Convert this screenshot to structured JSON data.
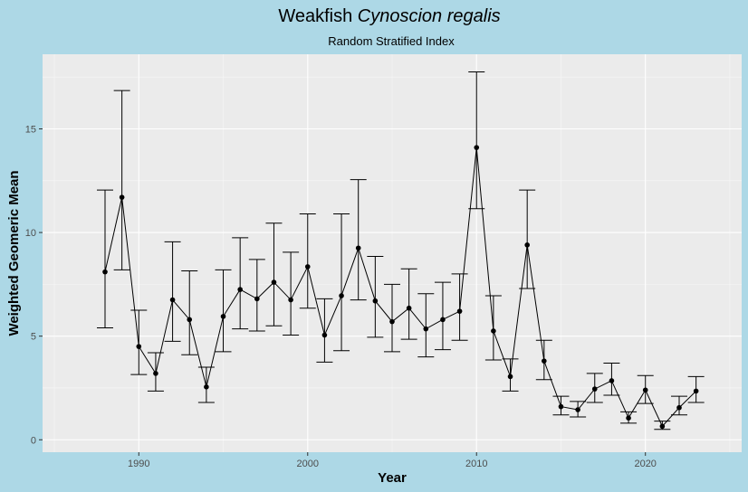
{
  "chart_data": {
    "type": "line",
    "title_main": "Weakfish",
    "title_species": "Cynoscion regalis",
    "subtitle": "Random Stratified Index",
    "xlabel": "Year",
    "ylabel": "Weighted Geomeric Mean",
    "xlim": [
      1984.3,
      2025.7
    ],
    "ylim": [
      -0.6,
      18.6
    ],
    "x_ticks": [
      1990,
      2000,
      2010,
      2020
    ],
    "y_ticks": [
      0,
      5,
      10,
      15
    ],
    "grid": true,
    "legend": "none",
    "series": [
      {
        "name": "Weighted Geometric Mean",
        "x": [
          1988,
          1989,
          1990,
          1991,
          1992,
          1993,
          1994,
          1995,
          1996,
          1997,
          1998,
          1999,
          2000,
          2001,
          2002,
          2003,
          2004,
          2005,
          2006,
          2007,
          2008,
          2009,
          2010,
          2011,
          2012,
          2013,
          2014,
          2015,
          2016,
          2017,
          2018,
          2019,
          2020,
          2021,
          2022,
          2023
        ],
        "values": [
          8.1,
          11.7,
          4.5,
          3.2,
          6.75,
          5.8,
          2.55,
          5.95,
          7.25,
          6.8,
          7.6,
          6.75,
          8.35,
          5.05,
          6.95,
          9.25,
          6.7,
          5.7,
          6.35,
          5.35,
          5.8,
          6.2,
          14.1,
          5.25,
          3.05,
          9.4,
          3.8,
          1.6,
          1.45,
          2.45,
          2.85,
          1.05,
          2.4,
          0.65,
          1.55,
          2.35
        ],
        "lower": [
          5.4,
          8.2,
          3.15,
          2.35,
          4.75,
          4.1,
          1.8,
          4.25,
          5.35,
          5.25,
          5.5,
          5.05,
          6.35,
          3.75,
          4.3,
          6.75,
          4.95,
          4.25,
          4.85,
          4.0,
          4.35,
          4.8,
          11.15,
          3.85,
          2.35,
          7.3,
          2.9,
          1.2,
          1.1,
          1.8,
          2.15,
          0.8,
          1.75,
          0.5,
          1.2,
          1.8
        ],
        "upper": [
          12.05,
          16.85,
          6.25,
          4.2,
          9.55,
          8.15,
          3.5,
          8.2,
          9.75,
          8.7,
          10.45,
          9.05,
          10.9,
          6.8,
          10.9,
          12.55,
          8.85,
          7.5,
          8.25,
          7.05,
          7.6,
          8.0,
          17.75,
          6.95,
          3.9,
          12.05,
          4.8,
          2.1,
          1.85,
          3.2,
          3.7,
          1.35,
          3.1,
          0.9,
          2.1,
          3.05
        ]
      }
    ]
  }
}
